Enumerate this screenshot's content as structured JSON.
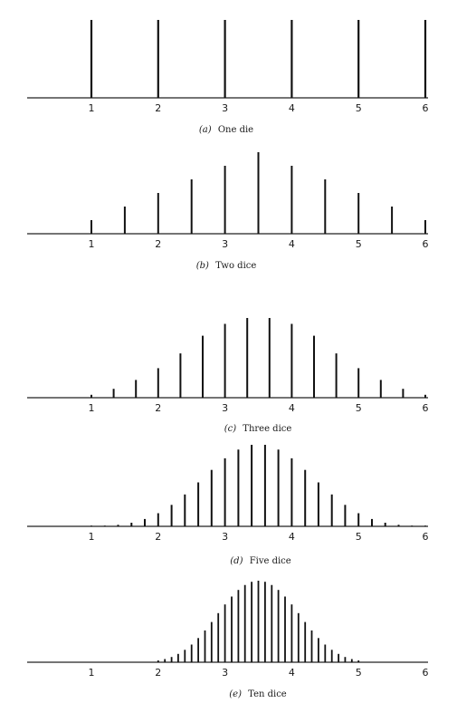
{
  "figure": {
    "charts": [
      {
        "label": "(a)",
        "caption": "One die"
      },
      {
        "label": "(b)",
        "caption": "Two dice"
      },
      {
        "label": "(c)",
        "caption": "Three dice"
      },
      {
        "label": "(d)",
        "caption": "Five dice"
      },
      {
        "label": "(e)",
        "caption": "Ten dice"
      }
    ]
  },
  "chart_data": [
    {
      "type": "bar",
      "title": "(a) One die",
      "dice": 1,
      "x_ticks": [
        "1",
        "2",
        "3",
        "4",
        "5",
        "6"
      ],
      "xlim": [
        0.1,
        6
      ],
      "x": [
        1,
        2,
        3,
        4,
        5,
        6
      ],
      "values": [
        0.1667,
        0.1667,
        0.1667,
        0.1667,
        0.1667,
        0.1667
      ]
    },
    {
      "type": "bar",
      "title": "(b) Two dice",
      "dice": 2,
      "x_ticks": [
        "1",
        "2",
        "3",
        "4",
        "5",
        "6"
      ],
      "xlim": [
        0.1,
        6
      ],
      "x": [
        1,
        1.5,
        2,
        2.5,
        3,
        3.5,
        4,
        4.5,
        5,
        5.5,
        6
      ],
      "values": [
        0.0278,
        0.0556,
        0.0833,
        0.1111,
        0.1389,
        0.1667,
        0.1389,
        0.1111,
        0.0833,
        0.0556,
        0.0278
      ]
    },
    {
      "type": "bar",
      "title": "(c) Three dice",
      "dice": 3,
      "x_ticks": [
        "1",
        "2",
        "3",
        "4",
        "5",
        "6"
      ],
      "xlim": [
        0.1,
        6
      ],
      "x": [
        1,
        1.333,
        1.667,
        2,
        2.333,
        2.667,
        3,
        3.333,
        3.667,
        4,
        4.333,
        4.667,
        5,
        5.333,
        5.667,
        6
      ],
      "values": [
        0.0046,
        0.0139,
        0.0278,
        0.0463,
        0.0694,
        0.0972,
        0.1157,
        0.125,
        0.125,
        0.1157,
        0.0972,
        0.0694,
        0.0463,
        0.0278,
        0.0139,
        0.0046
      ]
    },
    {
      "type": "bar",
      "title": "(d) Five dice",
      "dice": 5,
      "x_ticks": [
        "1",
        "2",
        "3",
        "4",
        "5",
        "6"
      ],
      "xlim": [
        0.1,
        6
      ],
      "x": [
        1,
        1.2,
        1.4,
        1.6,
        1.8,
        2,
        2.2,
        2.4,
        2.6,
        2.8,
        3,
        3.2,
        3.4,
        3.6,
        3.8,
        4,
        4.2,
        4.4,
        4.6,
        4.8,
        5,
        5.2,
        5.4,
        5.6,
        5.8,
        6
      ],
      "values": [
        0.0001,
        0.0006,
        0.0019,
        0.0045,
        0.009,
        0.0162,
        0.0264,
        0.0392,
        0.0541,
        0.0694,
        0.0837,
        0.0945,
        0.1003,
        0.1003,
        0.0945,
        0.0837,
        0.0694,
        0.0541,
        0.0392,
        0.0264,
        0.0162,
        0.009,
        0.0045,
        0.0019,
        0.0006,
        0.0001
      ]
    },
    {
      "type": "bar",
      "title": "(e) Ten dice",
      "dice": 10,
      "x_ticks": [
        "1",
        "2",
        "3",
        "4",
        "5",
        "6"
      ],
      "xlim": [
        0.1,
        6
      ],
      "x": [
        2.0,
        2.1,
        2.2,
        2.3,
        2.4,
        2.5,
        2.6,
        2.7,
        2.8,
        2.9,
        3.0,
        3.1,
        3.2,
        3.3,
        3.4,
        3.5,
        3.6,
        3.7,
        3.8,
        3.9,
        4.0,
        4.1,
        4.2,
        4.3,
        4.4,
        4.5,
        4.6,
        4.7,
        4.8,
        4.9,
        5.0
      ],
      "values": [
        0.0016,
        0.0028,
        0.0047,
        0.0074,
        0.011,
        0.0157,
        0.0215,
        0.0283,
        0.0358,
        0.0437,
        0.0514,
        0.0584,
        0.0643,
        0.0687,
        0.0715,
        0.0725,
        0.0715,
        0.0687,
        0.0643,
        0.0584,
        0.0514,
        0.0437,
        0.0358,
        0.0283,
        0.0215,
        0.0157,
        0.011,
        0.0074,
        0.0047,
        0.0028,
        0.0016
      ]
    }
  ]
}
